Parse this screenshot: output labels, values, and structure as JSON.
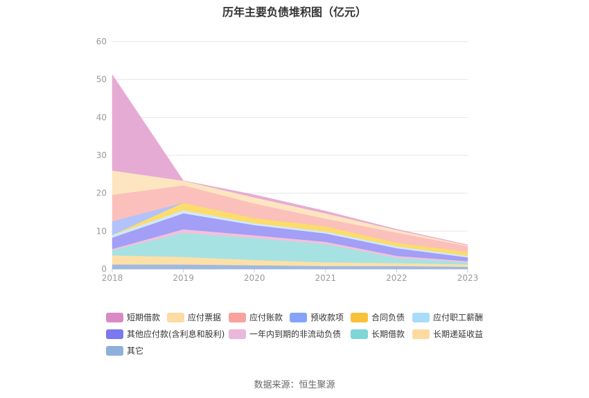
{
  "chart_data": {
    "type": "area",
    "title": "历年主要负债堆积图（亿元）",
    "x": [
      "2018",
      "2019",
      "2020",
      "2021",
      "2022",
      "2023"
    ],
    "ylim": [
      0,
      60
    ],
    "yticks": [
      0,
      10,
      20,
      30,
      40,
      50,
      60
    ],
    "stacked": true,
    "grid": true,
    "legend_position": "bottom",
    "series": [
      {
        "name": "其它",
        "color": "#9fb8e0",
        "values": [
          1.2,
          1.2,
          1.0,
          0.8,
          0.8,
          0.6
        ]
      },
      {
        "name": "长期递延收益",
        "color": "#fde0a8",
        "values": [
          2.4,
          2.0,
          1.4,
          1.0,
          0.8,
          0.6
        ]
      },
      {
        "name": "长期借款",
        "color": "#a7e2e2",
        "values": [
          1.4,
          6.4,
          5.8,
          4.8,
          1.4,
          0.6
        ]
      },
      {
        "name": "一年内到期的非流动负债",
        "color": "#f3c0dc",
        "values": [
          0.3,
          0.9,
          0.7,
          0.6,
          0.5,
          0.3
        ]
      },
      {
        "name": "其他应付款(含利息和股利)",
        "color": "#a39ef6",
        "values": [
          3.0,
          4.2,
          2.7,
          2.2,
          2.0,
          1.0
        ]
      },
      {
        "name": "应付职工薪酬",
        "color": "#cfe8fc",
        "values": [
          0.7,
          0.8,
          0.5,
          0.5,
          0.5,
          0.4
        ]
      },
      {
        "name": "合同负债",
        "color": "#fcdc6c",
        "values": [
          0.0,
          2.0,
          1.4,
          1.4,
          1.0,
          1.1
        ]
      },
      {
        "name": "预收款项",
        "color": "#b2c2fb",
        "values": [
          3.6,
          0.0,
          0.0,
          0.0,
          0.0,
          0.0
        ]
      },
      {
        "name": "应付账款",
        "color": "#fbc0bc",
        "values": [
          7.0,
          4.6,
          3.8,
          2.0,
          2.6,
          1.5
        ]
      },
      {
        "name": "应付票据",
        "color": "#fde5c0",
        "values": [
          6.4,
          1.2,
          1.6,
          1.4,
          0.7,
          0.2
        ]
      },
      {
        "name": "短期借款",
        "color": "#e6abd4",
        "values": [
          25.3,
          0.0,
          0.7,
          0.6,
          0.2,
          0.1
        ]
      }
    ],
    "legend": [
      {
        "name": "短期借款",
        "color": "#d98ac4"
      },
      {
        "name": "应付票据",
        "color": "#fcdba4"
      },
      {
        "name": "应付账款",
        "color": "#f9a29c"
      },
      {
        "name": "预收款项",
        "color": "#85a3f9"
      },
      {
        "name": "合同负债",
        "color": "#f8c13a"
      },
      {
        "name": "应付职工薪酬",
        "color": "#a8dcfa"
      },
      {
        "name": "其他应付款(含利息和股利)",
        "color": "#7b78f1"
      },
      {
        "name": "一年内到期的非流动负债",
        "color": "#e9b8da"
      },
      {
        "name": "长期借款",
        "color": "#7fd6d6"
      },
      {
        "name": "长期递延收益",
        "color": "#fddba0"
      },
      {
        "name": "其它",
        "color": "#8eb0dc"
      }
    ]
  },
  "source": "数据来源：恒生聚源"
}
